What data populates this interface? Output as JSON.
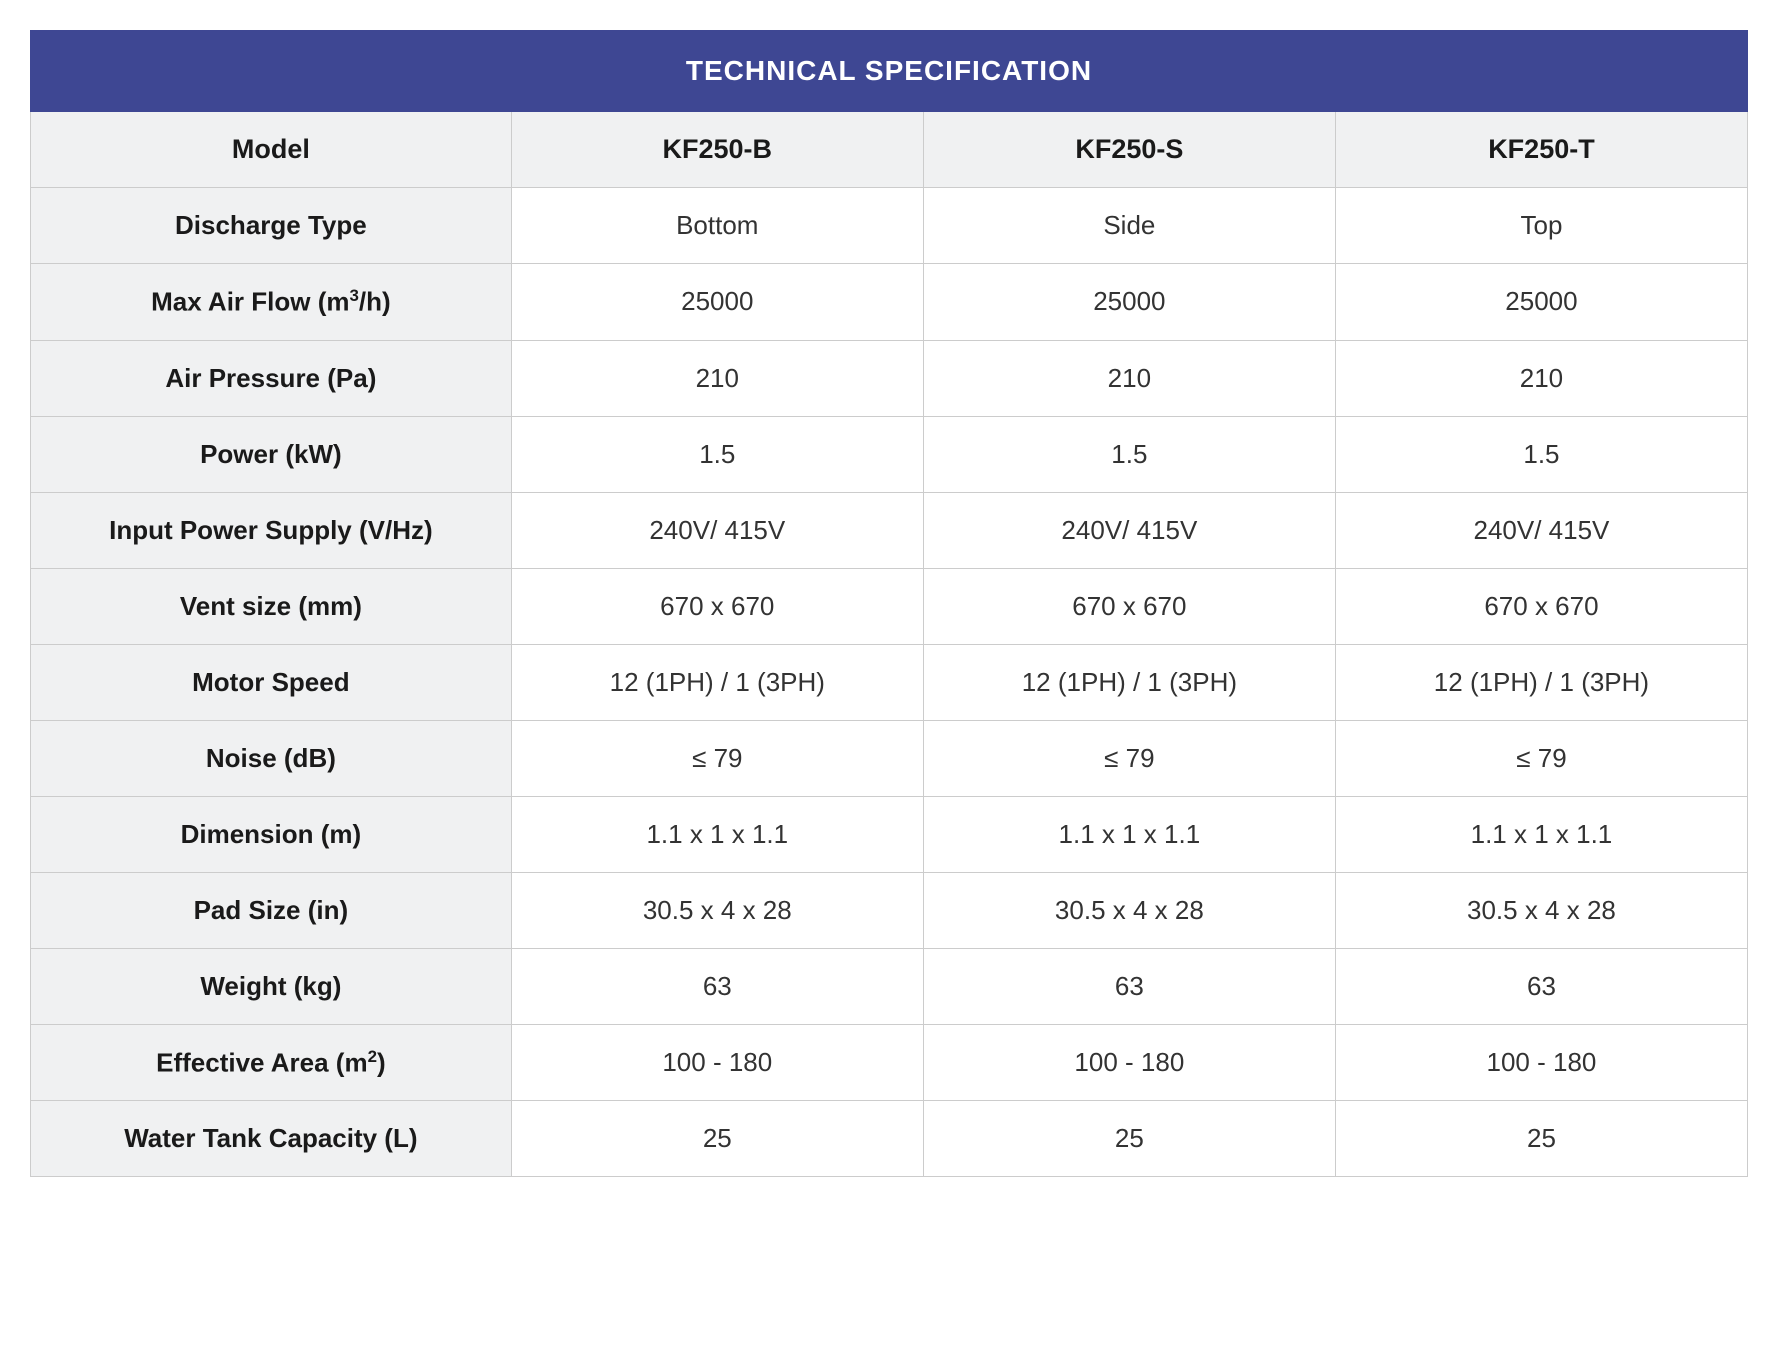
{
  "table": {
    "title": "TECHNICAL SPECIFICATION",
    "columns": [
      {
        "label": "Model"
      },
      {
        "label": "KF250-B"
      },
      {
        "label": "KF250-S"
      },
      {
        "label": "KF250-T"
      }
    ],
    "rows": [
      {
        "label": "Discharge Type",
        "cells": [
          "Bottom",
          "Side",
          "Top"
        ]
      },
      {
        "label_html": "Max Air Flow (m<sup>3</sup>/h)",
        "cells": [
          "25000",
          "25000",
          "25000"
        ]
      },
      {
        "label": "Air Pressure (Pa)",
        "cells": [
          "210",
          "210",
          "210"
        ]
      },
      {
        "label": "Power (kW)",
        "cells": [
          "1.5",
          "1.5",
          "1.5"
        ]
      },
      {
        "label": "Input Power Supply (V/Hz)",
        "cells": [
          "240V/ 415V",
          "240V/ 415V",
          "240V/ 415V"
        ]
      },
      {
        "label": "Vent size (mm)",
        "cells": [
          "670 x 670",
          "670 x 670",
          "670 x 670"
        ]
      },
      {
        "label": "Motor Speed",
        "cells": [
          "12 (1PH) / 1 (3PH)",
          "12 (1PH) / 1 (3PH)",
          "12 (1PH) / 1 (3PH)"
        ]
      },
      {
        "label": "Noise (dB)",
        "cells": [
          "≤ 79",
          "≤ 79",
          "≤ 79"
        ]
      },
      {
        "label": "Dimension (m)",
        "cells": [
          "1.1 x 1 x 1.1",
          "1.1 x 1 x 1.1",
          "1.1 x 1 x 1.1"
        ]
      },
      {
        "label": "Pad Size (in)",
        "cells": [
          "30.5 x 4 x 28",
          "30.5 x 4 x 28",
          "30.5 x 4 x 28"
        ]
      },
      {
        "label": "Weight (kg)",
        "cells": [
          "63",
          "63",
          "63"
        ]
      },
      {
        "label_html": "Effective Area (m<sup>2</sup>)",
        "cells": [
          "100 - 180",
          "100 - 180",
          "100 - 180"
        ]
      },
      {
        "label": "Water Tank Capacity (L)",
        "cells": [
          "25",
          "25",
          "25"
        ]
      }
    ],
    "colors": {
      "title_bg": "#3e4793",
      "title_text": "#ffffff",
      "header_bg": "#f0f1f2",
      "label_bg": "#f0f1f2",
      "label_text": "#1a1a1a",
      "value_bg": "#ffffff",
      "value_text": "#333333",
      "border": "#cccccc"
    },
    "font_sizes": {
      "title": 28,
      "header": 27,
      "label": 27,
      "value": 26
    }
  }
}
